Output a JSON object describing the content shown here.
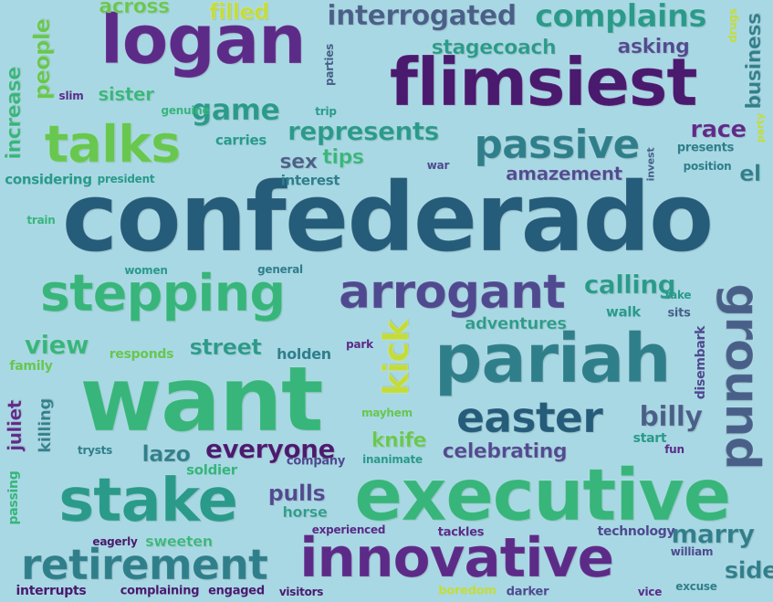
{
  "words": [
    {
      "text": "confederado",
      "color": "dkb"
    },
    {
      "text": "logan",
      "color": "vio"
    },
    {
      "text": "flimsiest",
      "color": "pur"
    },
    {
      "text": "want",
      "color": "grn"
    },
    {
      "text": "executive",
      "color": "grn"
    },
    {
      "text": "innovative",
      "color": "vio"
    },
    {
      "text": "stake",
      "color": "tel"
    },
    {
      "text": "pariah",
      "color": "tea"
    },
    {
      "text": "stepping",
      "color": "grn"
    },
    {
      "text": "arrogant",
      "color": "ind"
    },
    {
      "text": "retirement",
      "color": "tea"
    },
    {
      "text": "talks",
      "color": "lim"
    },
    {
      "text": "passive",
      "color": "tea"
    },
    {
      "text": "ground",
      "color": "slt"
    },
    {
      "text": "easter",
      "color": "dkb"
    },
    {
      "text": "interrogated",
      "color": "slt"
    },
    {
      "text": "complains",
      "color": "tel"
    },
    {
      "text": "kick",
      "color": "yel"
    },
    {
      "text": "game",
      "color": "tel"
    },
    {
      "text": "represents",
      "color": "tel"
    },
    {
      "text": "everyone",
      "color": "pur"
    },
    {
      "text": "calling",
      "color": "tel"
    },
    {
      "text": "view",
      "color": "grn"
    },
    {
      "text": "street",
      "color": "tel"
    },
    {
      "text": "billy",
      "color": "slt"
    },
    {
      "text": "amazement",
      "color": "ind"
    },
    {
      "text": "marry",
      "color": "tea"
    },
    {
      "text": "lazo",
      "color": "tea"
    },
    {
      "text": "knife",
      "color": "lim"
    },
    {
      "text": "pulls",
      "color": "ind"
    },
    {
      "text": "celebrating",
      "color": "ind"
    },
    {
      "text": "stagecoach",
      "color": "tel"
    },
    {
      "text": "people",
      "color": "lim"
    },
    {
      "text": "across",
      "color": "lim"
    },
    {
      "text": "filled",
      "color": "yel"
    },
    {
      "text": "sister",
      "color": "grn"
    },
    {
      "text": "asking",
      "color": "ind"
    },
    {
      "text": "race",
      "color": "vio"
    },
    {
      "text": "adventures",
      "color": "tel"
    },
    {
      "text": "increase",
      "color": "grn"
    },
    {
      "text": "tips",
      "color": "grn"
    },
    {
      "text": "sex",
      "color": "slt"
    },
    {
      "text": "business",
      "color": "tea"
    },
    {
      "text": "el",
      "color": "tea"
    },
    {
      "text": "side",
      "color": "tea"
    },
    {
      "text": "sweeten",
      "color": "grn"
    },
    {
      "text": "horse",
      "color": "tel"
    },
    {
      "text": "juliet",
      "color": "vio"
    },
    {
      "text": "killing",
      "color": "tea"
    },
    {
      "text": "carries",
      "color": "tel"
    },
    {
      "text": "holden",
      "color": "tea"
    },
    {
      "text": "soldier",
      "color": "grn"
    },
    {
      "text": "interest",
      "color": "tea"
    },
    {
      "text": "considering",
      "color": "tel"
    },
    {
      "text": "president",
      "color": "tel"
    },
    {
      "text": "train",
      "color": "grn"
    },
    {
      "text": "women",
      "color": "tel"
    },
    {
      "text": "general",
      "color": "tea"
    },
    {
      "text": "responds",
      "color": "lim"
    },
    {
      "text": "family",
      "color": "lim"
    },
    {
      "text": "walk",
      "color": "tel"
    },
    {
      "text": "sits",
      "color": "slt"
    },
    {
      "text": "take",
      "color": "tel"
    },
    {
      "text": "disembark",
      "color": "ind"
    },
    {
      "text": "fun",
      "color": "vio"
    },
    {
      "text": "start",
      "color": "tel"
    },
    {
      "text": "trysts",
      "color": "tea"
    },
    {
      "text": "company",
      "color": "ind"
    },
    {
      "text": "inanimate",
      "color": "tel"
    },
    {
      "text": "mayhem",
      "color": "lim"
    },
    {
      "text": "park",
      "color": "vio"
    },
    {
      "text": "passing",
      "color": "grn"
    },
    {
      "text": "eagerly",
      "color": "pur"
    },
    {
      "text": "experienced",
      "color": "vio"
    },
    {
      "text": "tackles",
      "color": "vio"
    },
    {
      "text": "technology",
      "color": "ind"
    },
    {
      "text": "william",
      "color": "ind"
    },
    {
      "text": "interrupts",
      "color": "pur"
    },
    {
      "text": "complaining",
      "color": "pur"
    },
    {
      "text": "engaged",
      "color": "pur"
    },
    {
      "text": "visitors",
      "color": "pur"
    },
    {
      "text": "boredom",
      "color": "yel"
    },
    {
      "text": "darker",
      "color": "ind"
    },
    {
      "text": "vice",
      "color": "vio"
    },
    {
      "text": "excuse",
      "color": "tea"
    },
    {
      "text": "slim",
      "color": "vio"
    },
    {
      "text": "genuine",
      "color": "grn"
    },
    {
      "text": "trip",
      "color": "tel"
    },
    {
      "text": "parties",
      "color": "slt"
    },
    {
      "text": "drugs",
      "color": "yel"
    },
    {
      "text": "party",
      "color": "yel"
    },
    {
      "text": "presents",
      "color": "tea"
    },
    {
      "text": "position",
      "color": "tea"
    },
    {
      "text": "war",
      "color": "ind"
    },
    {
      "text": "invest",
      "color": "slt"
    }
  ]
}
